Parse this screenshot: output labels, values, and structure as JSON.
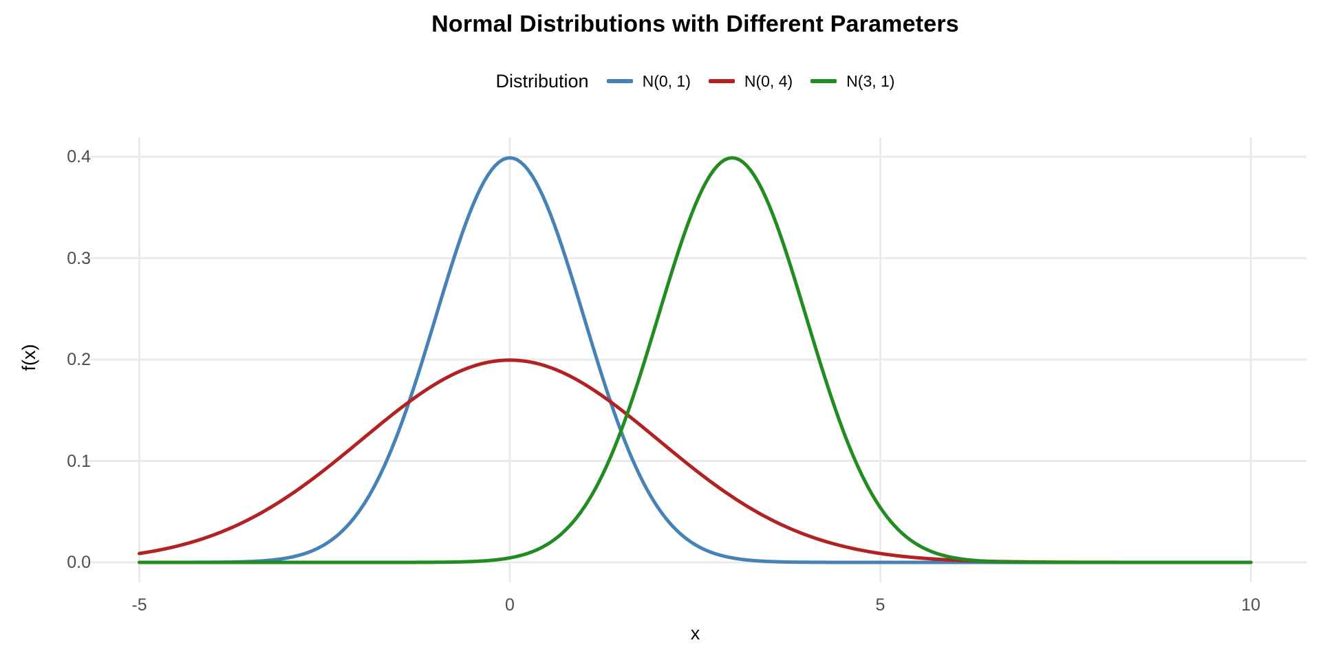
{
  "title": "Normal Distributions with Different Parameters",
  "axes": {
    "x_title": "x",
    "y_title": "f(x)",
    "x_tick_labels": [
      "-5",
      "0",
      "5",
      "10"
    ],
    "y_tick_labels": [
      "0.0",
      "0.1",
      "0.2",
      "0.3",
      "0.4"
    ]
  },
  "legend": {
    "title": "Distribution",
    "items": [
      {
        "label": "N(0, 1)",
        "color": "#4682B4"
      },
      {
        "label": "N(0, 4)",
        "color": "#B22222"
      },
      {
        "label": "N(3, 1)",
        "color": "#228B22"
      }
    ]
  },
  "colors": {
    "background": "#FFFFFF",
    "grid": "#EBEBEB",
    "tick_label": "#4D4D4D",
    "text": "#000000"
  },
  "chart_data": {
    "type": "line",
    "title": "Normal Distributions with Different Parameters",
    "xlabel": "x",
    "ylabel": "f(x)",
    "xlim": [
      -5,
      10
    ],
    "ylim": [
      0,
      0.4
    ],
    "x_ticks": [
      -5,
      0,
      5,
      10
    ],
    "y_ticks": [
      0,
      0.1,
      0.2,
      0.3,
      0.4
    ],
    "grid": "major-horizontal-and-vertical, light gray, no axis lines (ggplot minimal theme)",
    "legend_position": "top-center",
    "legend_title": "Distribution",
    "curve_type": "normal probability density function evaluated continuously from x=-5 to x=10",
    "series": [
      {
        "name": "N(0, 1)",
        "mean": 0,
        "sd": 1,
        "variance": 1,
        "peak": {
          "x": 0,
          "fx": 0.3989
        },
        "color": "#4682B4"
      },
      {
        "name": "N(0, 4)",
        "mean": 0,
        "sd": 2,
        "variance": 4,
        "peak": {
          "x": 0,
          "fx": 0.1995
        },
        "color": "#B22222"
      },
      {
        "name": "N(3, 1)",
        "mean": 3,
        "sd": 1,
        "variance": 1,
        "peak": {
          "x": 3,
          "fx": 0.3989
        },
        "color": "#228B22"
      }
    ],
    "samples": {
      "x": [
        -5,
        -4,
        -3,
        -2,
        -1,
        0,
        1,
        2,
        3,
        4,
        5,
        6,
        7,
        8,
        9,
        10
      ],
      "series_values": [
        [
          1e-06,
          0.000134,
          0.004432,
          0.053991,
          0.241971,
          0.398942,
          0.241971,
          0.053991,
          0.004432,
          0.000134,
          1e-06,
          0,
          0,
          0,
          0,
          0
        ],
        [
          0.008764,
          0.026995,
          0.064759,
          0.120985,
          0.176033,
          0.199471,
          0.176033,
          0.120985,
          0.064759,
          0.026995,
          0.008764,
          0.002216,
          0.000436,
          6.7e-05,
          8e-06,
          1e-06
        ],
        [
          0,
          0,
          0,
          1e-06,
          0.000134,
          0.004432,
          0.053991,
          0.241971,
          0.398942,
          0.241971,
          0.053991,
          0.004432,
          0.000134,
          1e-06,
          0,
          0
        ]
      ]
    }
  }
}
